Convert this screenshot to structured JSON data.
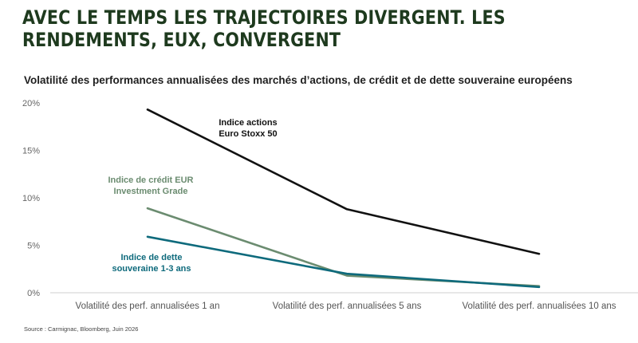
{
  "headline": "AVEC LE TEMPS LES TRAJECTOIRES DIVERGENT. LES RENDEMENTS, EUX, CONVERGENT",
  "source": "Source : Carmignac, Bloomberg, Juin 2026",
  "chart_data": {
    "type": "line",
    "title": "Volatilité des performances annualisées des marchés d’actions, de crédit et de dette souveraine européens",
    "categories": [
      "Volatilité des perf. annualisées 1 an",
      "Volatilité des perf. annualisées 5 ans",
      "Volatilité des perf. annualisées 10 ans"
    ],
    "ylim": [
      0,
      20
    ],
    "yticks": [
      0,
      5,
      10,
      15,
      20
    ],
    "ytick_labels": [
      "0%",
      "5%",
      "10%",
      "15%",
      "20%"
    ],
    "grid": false,
    "legend": "inline labels",
    "series": [
      {
        "name_lines": [
          "Indice actions",
          "Euro Stoxx 50"
        ],
        "color": "#111111",
        "values": [
          19.3,
          8.8,
          4.1
        ]
      },
      {
        "name_lines": [
          "Indice de crédit EUR",
          "Investment Grade"
        ],
        "color": "#6b8c70",
        "values": [
          8.9,
          1.8,
          0.7
        ]
      },
      {
        "name_lines": [
          "Indice de dette",
          "souveraine 1-3 ans"
        ],
        "color": "#0e6a7c",
        "values": [
          5.9,
          2.0,
          0.6
        ]
      }
    ]
  }
}
